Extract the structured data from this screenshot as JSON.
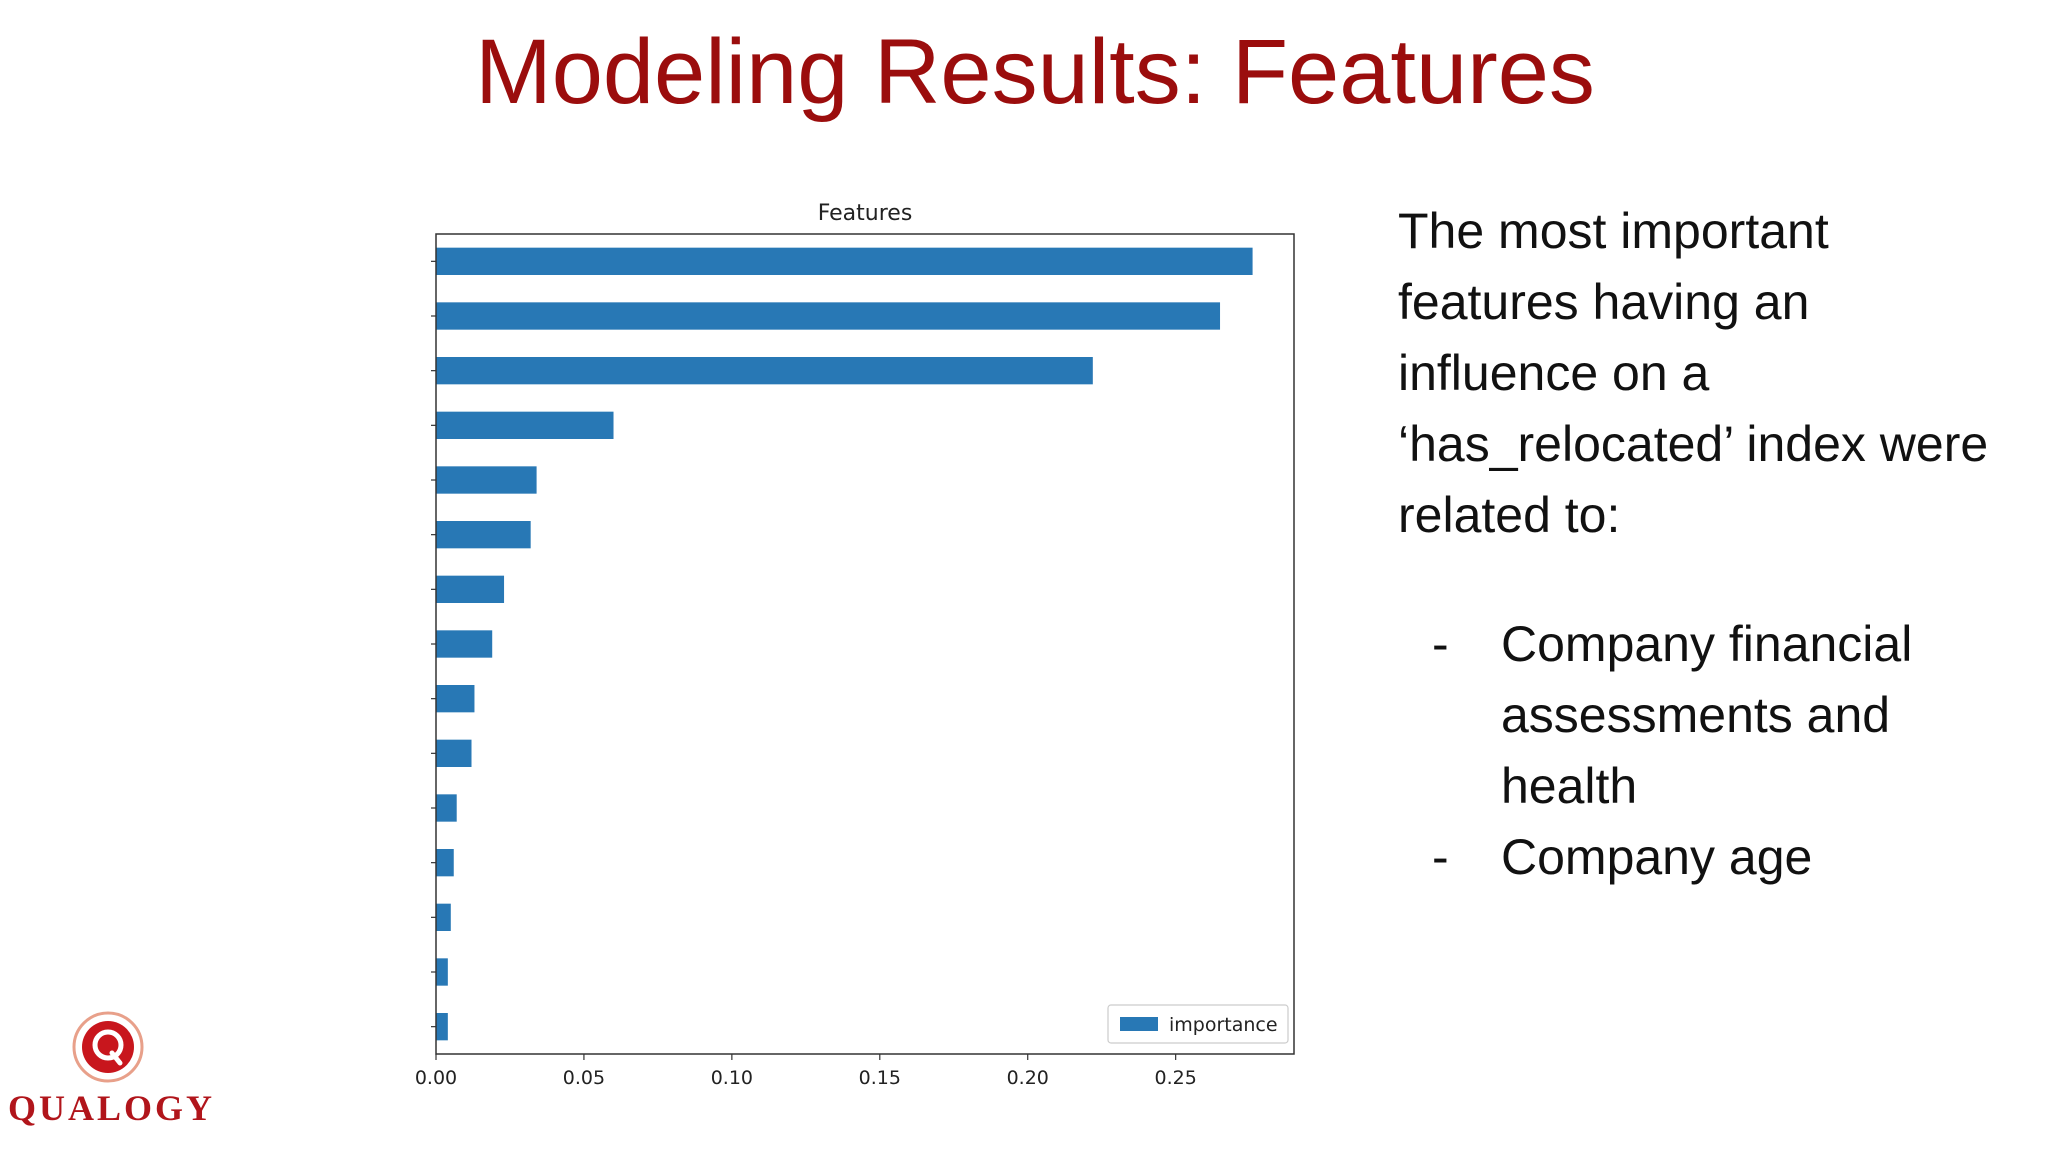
{
  "slide": {
    "title": "Modeling Results: Features",
    "intro": "The most important features having an influence on a ‘has_relocated’ index were related to:",
    "bullets": [
      "Company financial assessments and health",
      "Company age"
    ],
    "bullet_marker": "-",
    "logo_text": "QUALOGY"
  },
  "colors": {
    "title": "#9b0d0d",
    "bar": "#2878b5",
    "logo": "#b1151b"
  },
  "chart_data": {
    "type": "bar",
    "orientation": "horizontal",
    "title": "Features",
    "xlabel": "",
    "ylabel": "",
    "xlim": [
      0,
      0.29
    ],
    "xticks": [
      0.0,
      0.05,
      0.1,
      0.15,
      0.2,
      0.25
    ],
    "xtick_labels": [
      "0.00",
      "0.05",
      "0.10",
      "0.15",
      "0.20",
      "0.25"
    ],
    "grid": false,
    "legend": {
      "position": "bottom-right",
      "entries": [
        "importance"
      ]
    },
    "series": [
      {
        "name": "importance",
        "values": [
          0.276,
          0.265,
          0.222,
          0.06,
          0.034,
          0.032,
          0.023,
          0.019,
          0.013,
          0.012,
          0.007,
          0.006,
          0.005,
          0.004,
          0.004
        ]
      }
    ]
  }
}
